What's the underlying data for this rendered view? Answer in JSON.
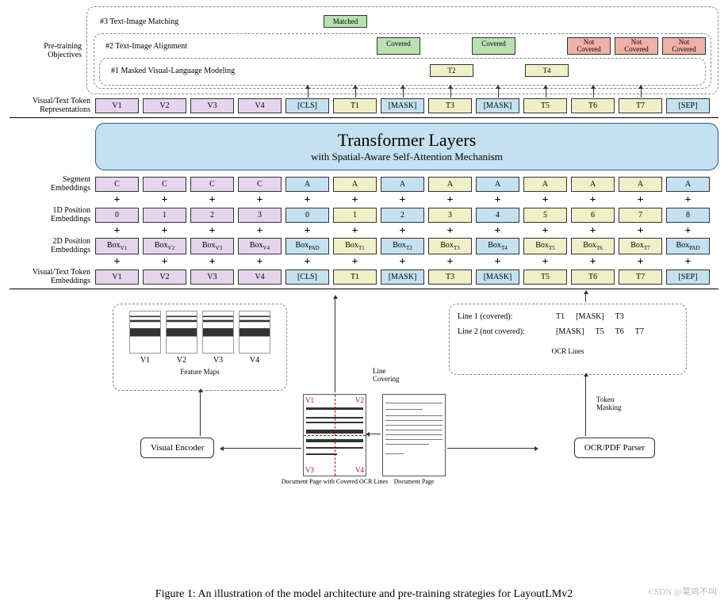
{
  "colors": {
    "purple": "#e6d4ec",
    "blue": "#c5e0f0",
    "yellow": "#f0f0c8",
    "green": "#b8e0b0",
    "red": "#f0b0a8",
    "border": "#333333",
    "dashed": "#888888",
    "accent_red": "#cc0000",
    "bg": "#ffffff"
  },
  "fonts": {
    "family": "Times New Roman",
    "cell_size": 10,
    "label_size": 10,
    "caption_size": 14,
    "transformer_title": 22,
    "transformer_sub": 13
  },
  "row_labels": {
    "pretraining": "Pre-training\nObjectives",
    "vt_repr": "Visual/Text Token\nRepresentations",
    "segment": "Segment\nEmbeddings",
    "pos1d": "1D Position\nEmbeddings",
    "pos2d": "2D Position\nEmbeddings",
    "vt_emb": "Visual/Text Token\nEmbeddings"
  },
  "objectives": {
    "obj3_label": "#3 Text-Image Matching",
    "obj3_out": [
      "Matched"
    ],
    "obj2_label": "#2 Text-Image Alignment",
    "obj2_out": [
      "Covered",
      "Covered",
      "Not\nCovered",
      "Not\nCovered",
      "Not\nCovered"
    ],
    "obj2_colors": [
      "green",
      "green",
      "red",
      "red",
      "red"
    ],
    "obj1_label": "#1 Masked Visual-Language Modeling",
    "obj1_out": [
      "T2",
      "T4"
    ]
  },
  "tokens": {
    "visual": [
      "V1",
      "V2",
      "V3",
      "V4"
    ],
    "text": [
      "[CLS]",
      "T1",
      "[MASK]",
      "T3",
      "[MASK]",
      "T5",
      "T6",
      "T7",
      "[SEP]"
    ],
    "text_colors": [
      "blue",
      "yellow",
      "blue",
      "yellow",
      "blue",
      "yellow",
      "yellow",
      "yellow",
      "blue"
    ]
  },
  "transformer": {
    "title": "Transformer Layers",
    "subtitle": "with Spatial-Aware Self-Attention Mechanism"
  },
  "segment": {
    "visual": [
      "C",
      "C",
      "C",
      "C"
    ],
    "text": [
      "A",
      "A",
      "A",
      "A",
      "A",
      "A",
      "A",
      "A",
      "A"
    ]
  },
  "pos1d": {
    "visual": [
      "0",
      "1",
      "2",
      "3"
    ],
    "text": [
      "0",
      "1",
      "2",
      "3",
      "4",
      "5",
      "6",
      "7",
      "8"
    ]
  },
  "pos2d": {
    "visual": [
      "Box_V1",
      "Box_V2",
      "Box_V3",
      "Box_V4"
    ],
    "text": [
      "Box_PAD",
      "Box_T1",
      "Box_T2",
      "Box_T3",
      "Box_T4",
      "Box_T5",
      "Box_T6",
      "Box_T7",
      "Box_PAD"
    ]
  },
  "feature_maps": {
    "labels": [
      "V1",
      "V2",
      "V3",
      "V4"
    ],
    "caption": "Feature Maps"
  },
  "ocr_lines": {
    "line1_label": "Line 1 (covered):",
    "line1": [
      "T1",
      "[MASK]",
      "T3"
    ],
    "line2_label": "Line 2 (not covered):",
    "line2": [
      "[MASK]",
      "T5",
      "T6",
      "T7"
    ],
    "caption": "OCR Lines"
  },
  "boxes": {
    "visual_encoder": "Visual Encoder",
    "parser": "OCR/PDF Parser"
  },
  "doc_captions": {
    "doc1": "Document Page with Covered OCR Lines",
    "doc2": "Document Page"
  },
  "doc_quads": [
    "V1",
    "V2",
    "V3",
    "V4"
  ],
  "edge_labels": {
    "line_covering": "Line\nCovering",
    "token_masking": "Token\nMasking"
  },
  "caption": "Figure 1: An illustration of the model architecture and pre-training strategies for LayoutLMv2",
  "watermark": "CSDN @菜鸡不叫"
}
